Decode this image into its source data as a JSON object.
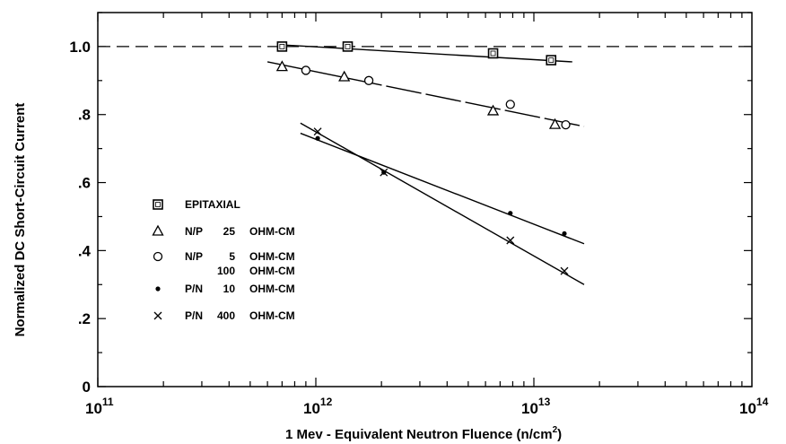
{
  "chart_data": {
    "type": "scatter",
    "x_scale": "log",
    "xlim": [
      100000000000.0,
      100000000000000.0
    ],
    "ylim": [
      0,
      1.1
    ],
    "xlabel_main": "1 Mev - Equivalent Neutron Fluence (n/cm",
    "xlabel_sup": "2",
    "xlabel_close": ")",
    "ylabel": "Normalized  DC  Short-Circuit  Current",
    "x_ticks": [
      {
        "value": 100000000000.0,
        "base": "10",
        "exp": "11"
      },
      {
        "value": 1000000000000.0,
        "base": "10",
        "exp": "12"
      },
      {
        "value": 10000000000000.0,
        "base": "10",
        "exp": "13"
      },
      {
        "value": 100000000000000.0,
        "base": "10",
        "exp": "14"
      }
    ],
    "y_ticks": [
      {
        "value": 0,
        "label": "0"
      },
      {
        "value": 0.2,
        "label": ".2"
      },
      {
        "value": 0.4,
        "label": ".4"
      },
      {
        "value": 0.6,
        "label": ".6"
      },
      {
        "value": 0.8,
        "label": ".8"
      },
      {
        "value": 1.0,
        "label": "1.0"
      }
    ],
    "reference_line": {
      "y": 1.0,
      "style": "dashed"
    },
    "legend_position": "left-bottom",
    "series": [
      {
        "name_parts": [
          "EPITAXIAL"
        ],
        "marker": "square",
        "points": [
          [
            700000000000.0,
            1.0
          ],
          [
            1400000000000.0,
            1.0
          ],
          [
            6500000000000.0,
            0.98
          ],
          [
            12000000000000.0,
            0.96
          ]
        ],
        "fit": [
          [
            700000000000.0,
            1.005
          ],
          [
            15000000000000.0,
            0.955
          ]
        ],
        "fit_style": "solid"
      },
      {
        "name_parts": [
          "N/P",
          "25",
          "OHM-CM"
        ],
        "marker": "triangle",
        "points": [
          [
            700000000000.0,
            0.94
          ],
          [
            1350000000000.0,
            0.91
          ],
          [
            6500000000000.0,
            0.81
          ],
          [
            12500000000000.0,
            0.77
          ]
        ],
        "fit": [
          [
            600000000000.0,
            0.955
          ],
          [
            17000000000000.0,
            0.765
          ]
        ],
        "fit_style": "long-dash"
      },
      {
        "name_parts": [
          "N/P",
          "5",
          "OHM-CM",
          "100",
          "OHM-CM"
        ],
        "marker": "circle",
        "points": [
          [
            900000000000.0,
            0.93
          ],
          [
            1750000000000.0,
            0.9
          ],
          [
            7800000000000.0,
            0.83
          ],
          [
            14000000000000.0,
            0.77
          ]
        ],
        "fit": null
      },
      {
        "name_parts": [
          "P/N",
          "10",
          "OHM-CM"
        ],
        "marker": "dot",
        "points": [
          [
            1020000000000.0,
            0.73
          ],
          [
            2050000000000.0,
            0.63
          ],
          [
            7800000000000.0,
            0.51
          ],
          [
            13800000000000.0,
            0.45
          ]
        ],
        "fit": [
          [
            850000000000.0,
            0.745
          ],
          [
            17000000000000.0,
            0.42
          ]
        ],
        "fit_style": "solid"
      },
      {
        "name_parts": [
          "P/N",
          "400",
          "OHM-CM"
        ],
        "marker": "cross",
        "points": [
          [
            1020000000000.0,
            0.75
          ],
          [
            2050000000000.0,
            0.63
          ],
          [
            7800000000000.0,
            0.43
          ],
          [
            13800000000000.0,
            0.34
          ]
        ],
        "fit": [
          [
            850000000000.0,
            0.775
          ],
          [
            17000000000000.0,
            0.3
          ]
        ],
        "fit_style": "solid"
      }
    ]
  }
}
